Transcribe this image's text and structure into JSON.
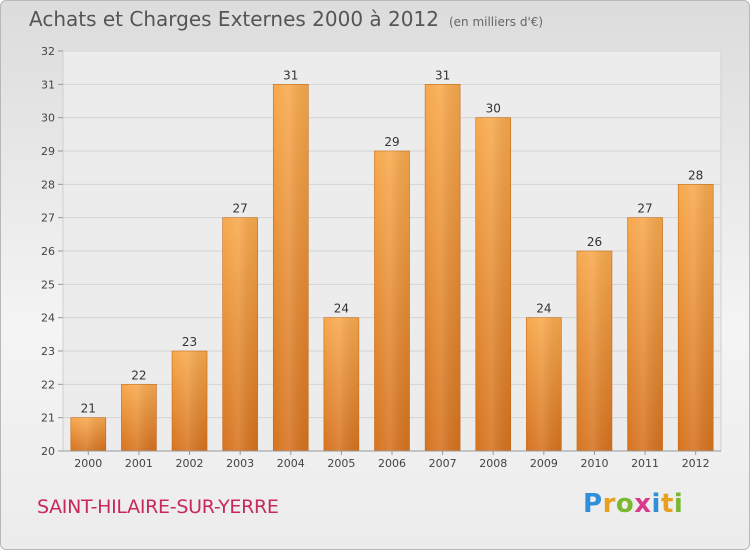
{
  "header": {
    "title": "Achats et Charges Externes 2000 à 2012",
    "subtitle": "(en milliers d'€)"
  },
  "footer": {
    "commune": "SAINT-HILAIRE-SUR-YERRE",
    "logo": "Proxiti"
  },
  "colors": {
    "bar_top": "#f7a94d",
    "bar_bottom": "#d6731f",
    "commune_text": "#c8285a"
  },
  "chart_data": {
    "type": "bar",
    "title": "Achats et Charges Externes 2000 à 2012",
    "subtitle": "(en milliers d'€)",
    "categories": [
      "2000",
      "2001",
      "2002",
      "2003",
      "2004",
      "2005",
      "2006",
      "2007",
      "2008",
      "2009",
      "2010",
      "2011",
      "2012"
    ],
    "values": [
      21,
      22,
      23,
      27,
      31,
      24,
      29,
      31,
      30,
      24,
      26,
      27,
      28
    ],
    "ylim": [
      20,
      32
    ],
    "yticks": [
      20,
      21,
      22,
      23,
      24,
      25,
      26,
      27,
      28,
      29,
      30,
      31,
      32
    ],
    "grid": true,
    "legend": "none"
  }
}
